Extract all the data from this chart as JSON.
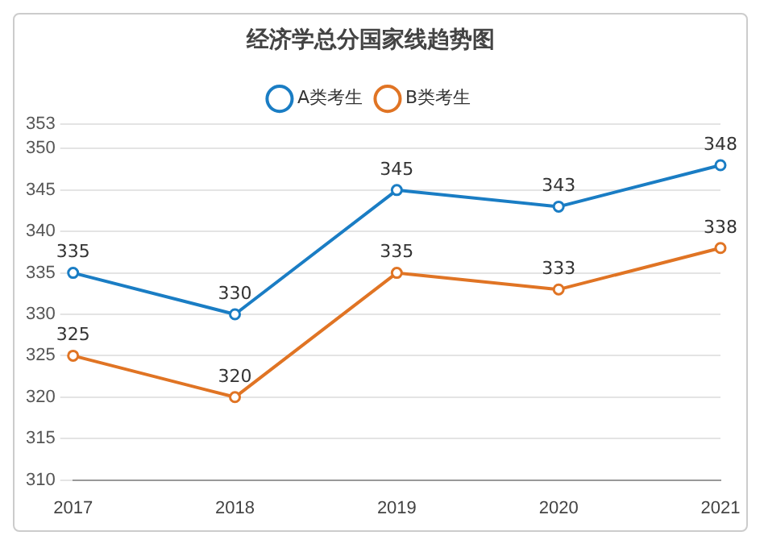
{
  "chart_data": {
    "type": "line",
    "title": "经济学总分国家线趋势图",
    "categories": [
      "2017",
      "2018",
      "2019",
      "2020",
      "2021"
    ],
    "series": [
      {
        "name": "A类考生",
        "color": "#1a7dc4",
        "values": [
          335,
          330,
          345,
          343,
          348
        ]
      },
      {
        "name": "B类考生",
        "color": "#e07424",
        "values": [
          325,
          320,
          335,
          333,
          338
        ]
      }
    ],
    "ylim": [
      310,
      353
    ],
    "yticks": [
      310,
      315,
      320,
      325,
      330,
      335,
      340,
      345,
      350,
      353
    ],
    "grid": "y",
    "legend": "top",
    "marker": "circle",
    "data_labels": true
  }
}
